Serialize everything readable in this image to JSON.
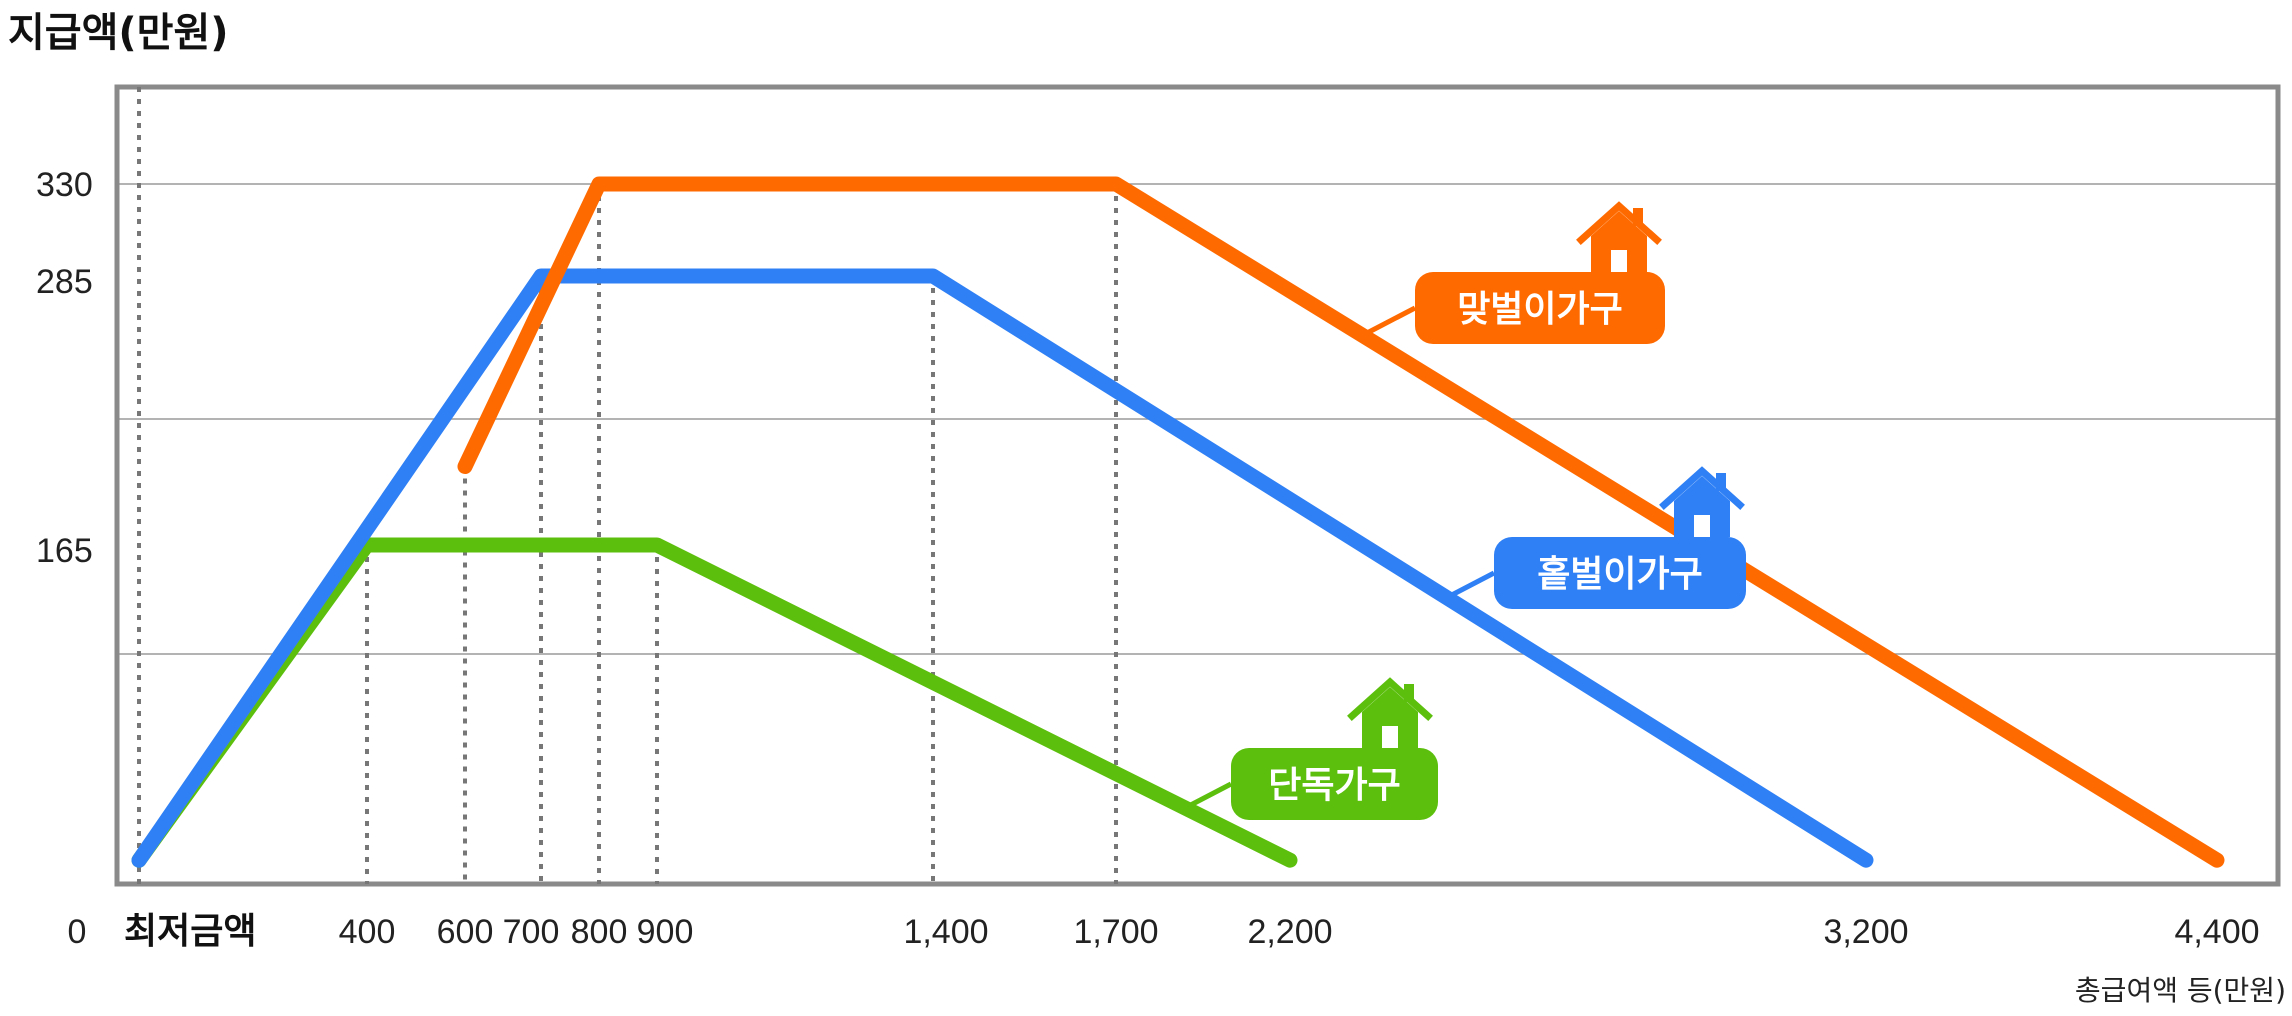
{
  "chart_data": {
    "type": "line",
    "ylabel": "지급액(만원)",
    "xlabel": "총급여액 등(만원)",
    "x_ticks": [
      {
        "value": 0,
        "label": "0"
      },
      {
        "value": 400,
        "label": "400"
      },
      {
        "value": 600,
        "label": "600"
      },
      {
        "value": 700,
        "label": "700"
      },
      {
        "value": 800,
        "label": "800"
      },
      {
        "value": 900,
        "label": "900"
      },
      {
        "value": 1400,
        "label": "1,400"
      },
      {
        "value": 1700,
        "label": "1,700"
      },
      {
        "value": 2200,
        "label": "2,200"
      },
      {
        "value": 3200,
        "label": "3,200"
      },
      {
        "value": 4400,
        "label": "4,400"
      }
    ],
    "y_ticks": [
      {
        "value": 165,
        "label": "165"
      },
      {
        "value": 285,
        "label": "285"
      },
      {
        "value": 330,
        "label": "330"
      }
    ],
    "min_label": "최저금액",
    "ylim": [
      0,
      360
    ],
    "grid": true,
    "series": [
      {
        "name": "맞벌이가구",
        "color": "#ff6a00",
        "icon": "house-icon",
        "points": [
          [
            600,
            200
          ],
          [
            800,
            330
          ],
          [
            1700,
            330
          ],
          [
            4400,
            5
          ]
        ]
      },
      {
        "name": "홑벌이가구",
        "color": "#2f80f5",
        "icon": "house-icon",
        "points": [
          [
            0,
            5
          ],
          [
            700,
            285
          ],
          [
            1400,
            285
          ],
          [
            3200,
            5
          ]
        ]
      },
      {
        "name": "단독가구",
        "color": "#5cbf0e",
        "icon": "house-icon",
        "points": [
          [
            0,
            5
          ],
          [
            400,
            165
          ],
          [
            900,
            165
          ],
          [
            2200,
            5
          ]
        ]
      }
    ]
  }
}
